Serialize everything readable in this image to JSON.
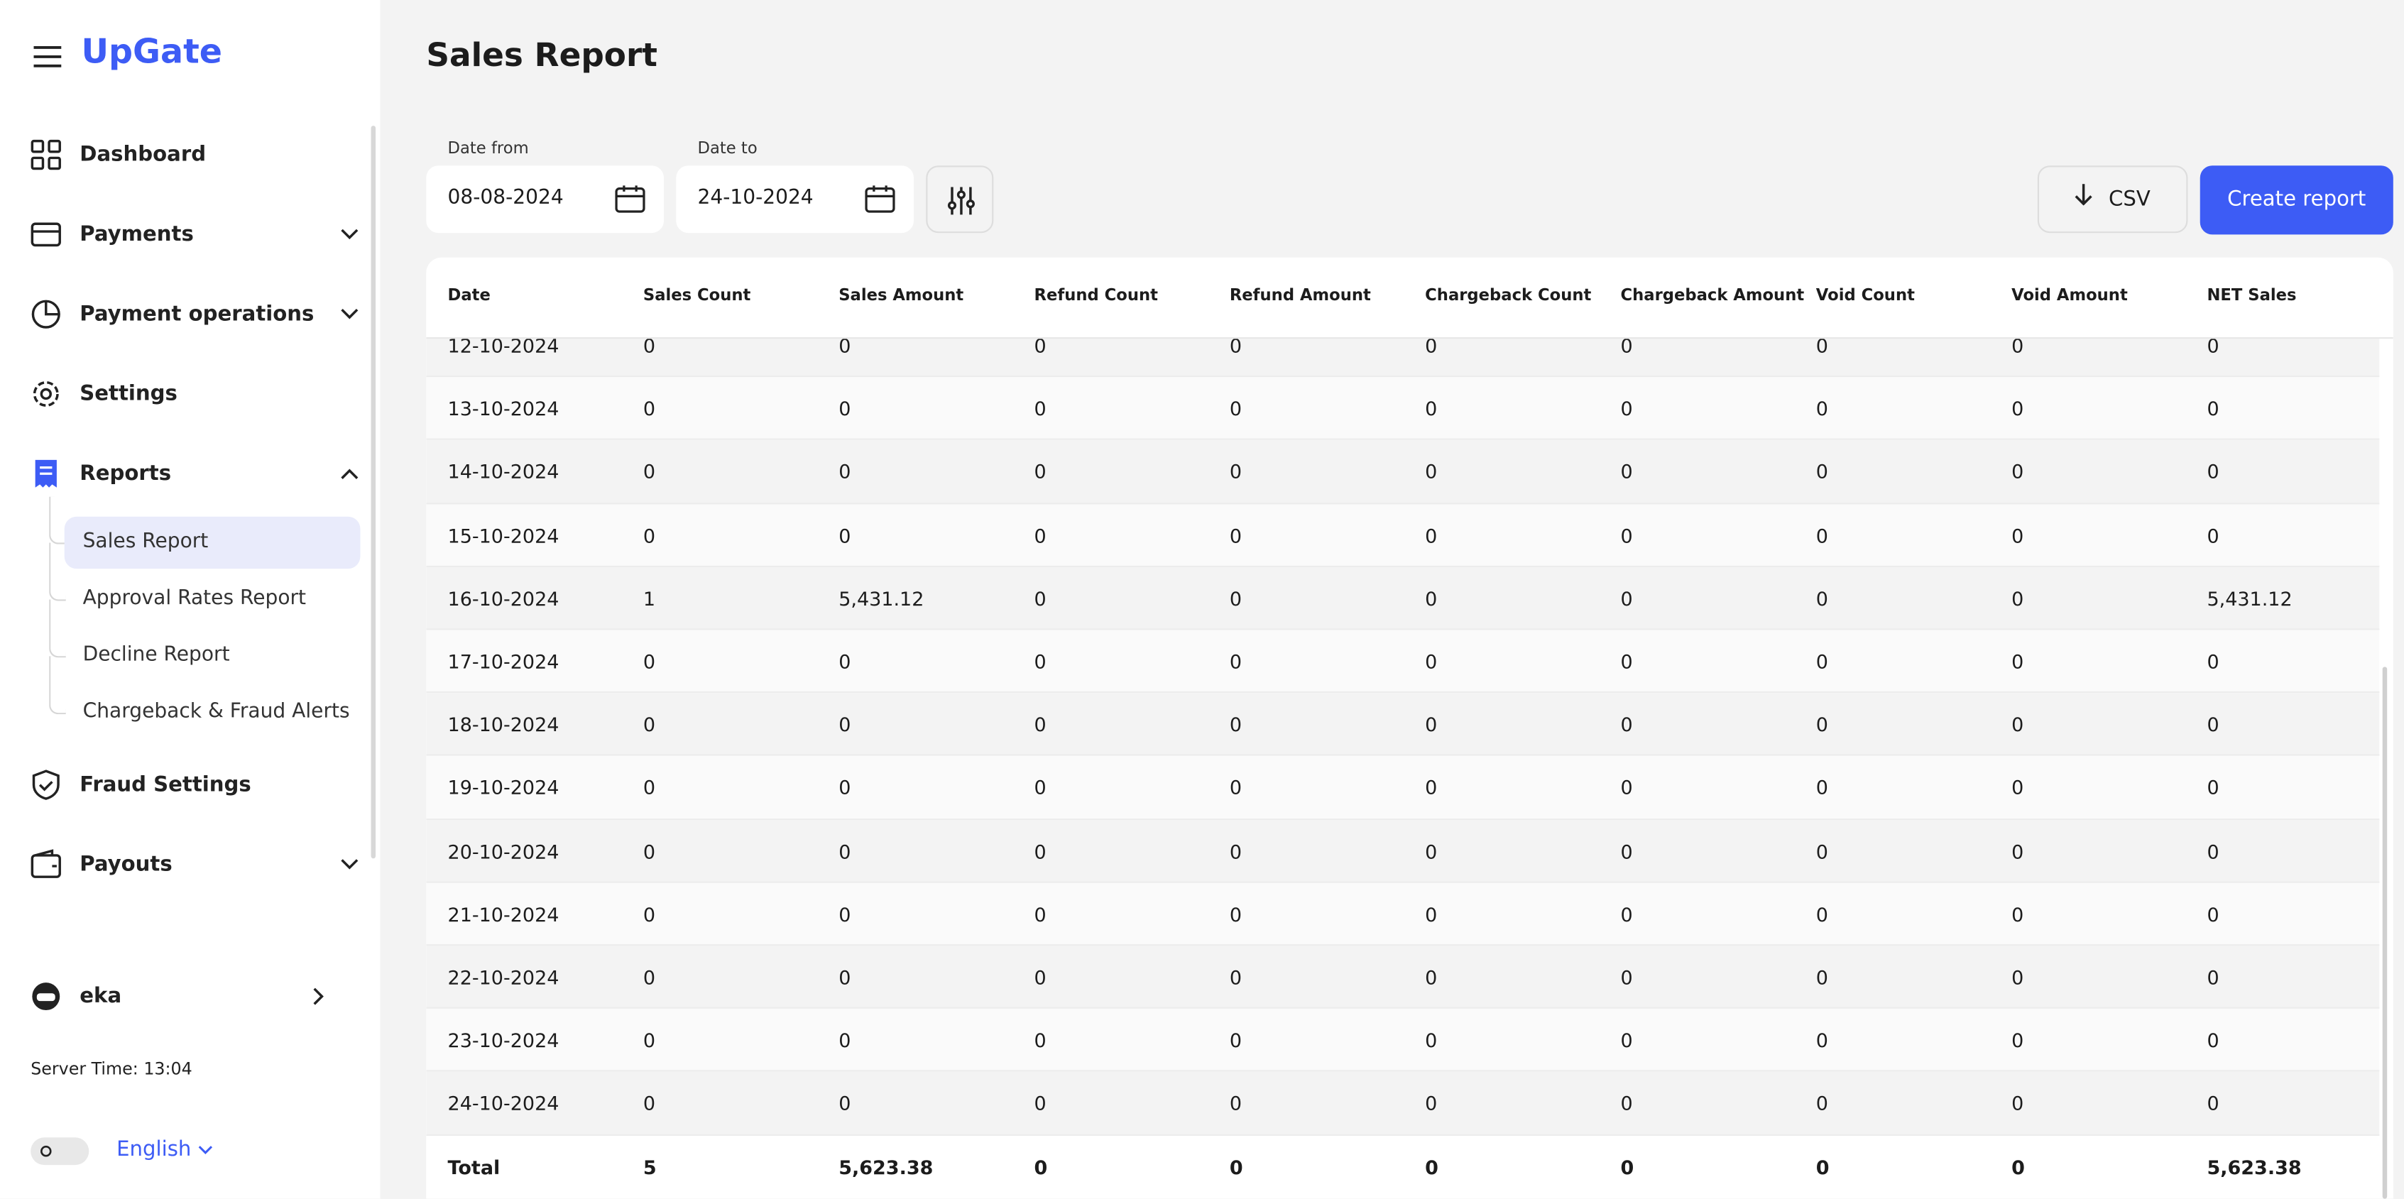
{
  "sidebar": {
    "logo": "UpGate",
    "nav": {
      "dashboard": "Dashboard",
      "payments": "Payments",
      "payment_operations": "Payment operations",
      "settings": "Settings",
      "reports": "Reports",
      "fraud_settings": "Fraud Settings",
      "payouts": "Payouts"
    },
    "reports_sub": [
      "Sales Report",
      "Approval Rates Report",
      "Decline Report",
      "Chargeback & Fraud Alerts"
    ],
    "user": "eka",
    "server_time": "Server Time: 13:04",
    "language": "English"
  },
  "header": {
    "title": "Sales Report"
  },
  "filters": {
    "date_from_label": "Date from",
    "date_from": "08-08-2024",
    "date_to_label": "Date to",
    "date_to": "24-10-2024",
    "csv": "CSV",
    "create_report": "Create report"
  },
  "table": {
    "columns": [
      "Date",
      "Sales Count",
      "Sales Amount",
      "Refund Count",
      "Refund Amount",
      "Chargeback Count",
      "Chargeback Amount",
      "Void Count",
      "Void Amount",
      "NET Sales"
    ],
    "rows": [
      [
        "12-10-2024",
        "0",
        "0",
        "0",
        "0",
        "0",
        "0",
        "0",
        "0",
        "0"
      ],
      [
        "13-10-2024",
        "0",
        "0",
        "0",
        "0",
        "0",
        "0",
        "0",
        "0",
        "0"
      ],
      [
        "14-10-2024",
        "0",
        "0",
        "0",
        "0",
        "0",
        "0",
        "0",
        "0",
        "0"
      ],
      [
        "15-10-2024",
        "0",
        "0",
        "0",
        "0",
        "0",
        "0",
        "0",
        "0",
        "0"
      ],
      [
        "16-10-2024",
        "1",
        "5,431.12",
        "0",
        "0",
        "0",
        "0",
        "0",
        "0",
        "5,431.12"
      ],
      [
        "17-10-2024",
        "0",
        "0",
        "0",
        "0",
        "0",
        "0",
        "0",
        "0",
        "0"
      ],
      [
        "18-10-2024",
        "0",
        "0",
        "0",
        "0",
        "0",
        "0",
        "0",
        "0",
        "0"
      ],
      [
        "19-10-2024",
        "0",
        "0",
        "0",
        "0",
        "0",
        "0",
        "0",
        "0",
        "0"
      ],
      [
        "20-10-2024",
        "0",
        "0",
        "0",
        "0",
        "0",
        "0",
        "0",
        "0",
        "0"
      ],
      [
        "21-10-2024",
        "0",
        "0",
        "0",
        "0",
        "0",
        "0",
        "0",
        "0",
        "0"
      ],
      [
        "22-10-2024",
        "0",
        "0",
        "0",
        "0",
        "0",
        "0",
        "0",
        "0",
        "0"
      ],
      [
        "23-10-2024",
        "0",
        "0",
        "0",
        "0",
        "0",
        "0",
        "0",
        "0",
        "0"
      ],
      [
        "24-10-2024",
        "0",
        "0",
        "0",
        "0",
        "0",
        "0",
        "0",
        "0",
        "0"
      ]
    ],
    "total": [
      "Total",
      "5",
      "5,623.38",
      "0",
      "0",
      "0",
      "0",
      "0",
      "0",
      "5,623.38"
    ]
  }
}
